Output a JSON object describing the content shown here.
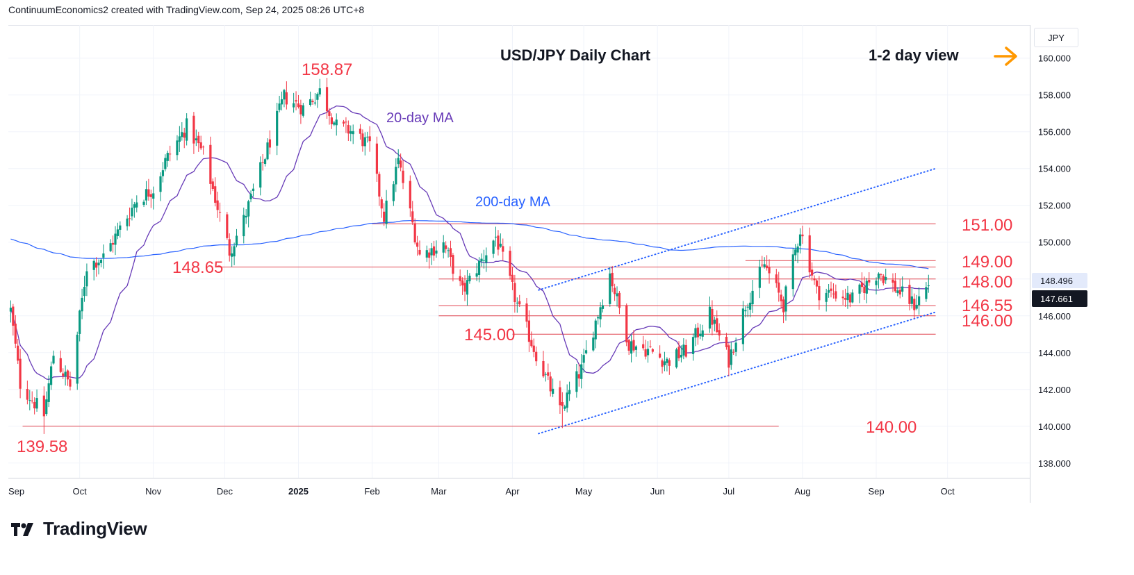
{
  "header": {
    "credit": "ContinuumEconomics2 created with TradingView.com, Sep 24, 2025 08:26 UTC+8"
  },
  "branding": {
    "logo_text": "TradingView"
  },
  "colors": {
    "bull": "#089981",
    "bear": "#f23645",
    "ma20": "#673ab7",
    "ma200": "#2962ff",
    "level_text": "#f23645",
    "arrow": "#ff9800",
    "grid": "#f0f3fa"
  },
  "chart_data": {
    "type": "candlestick",
    "title": "USD/JPY Daily Chart",
    "view_note": "1-2 day view",
    "view_arrow_icon": "arrow-right-icon",
    "currency": "JPY",
    "ylim": [
      137.2,
      161.8
    ],
    "yticks": [
      "138.000",
      "140.000",
      "142.000",
      "144.000",
      "146.000",
      "148.000",
      "150.000",
      "152.000",
      "154.000",
      "156.000",
      "158.000",
      "160.000"
    ],
    "xticks": [
      {
        "label": "Sep",
        "date": "2024-09-01"
      },
      {
        "label": "Oct",
        "date": "2024-10-01"
      },
      {
        "label": "Nov",
        "date": "2024-11-01"
      },
      {
        "label": "Dec",
        "date": "2024-12-01"
      },
      {
        "label": "2025",
        "date": "2025-01-01",
        "bold": true
      },
      {
        "label": "Feb",
        "date": "2025-02-01"
      },
      {
        "label": "Mar",
        "date": "2025-03-01"
      },
      {
        "label": "Apr",
        "date": "2025-04-01"
      },
      {
        "label": "May",
        "date": "2025-05-01"
      },
      {
        "label": "Jun",
        "date": "2025-06-01"
      },
      {
        "label": "Jul",
        "date": "2025-07-01"
      },
      {
        "label": "Aug",
        "date": "2025-08-01"
      },
      {
        "label": "Sep",
        "date": "2025-09-01"
      },
      {
        "label": "Oct",
        "date": "2025-10-01"
      }
    ],
    "last_price": "147.661",
    "ma200_price": "148.496",
    "annotations": {
      "ma20": "20-day MA",
      "ma200": "200-day MA"
    },
    "levels": [
      {
        "value": 151.0,
        "label": "151.00",
        "from": "2025-02-01",
        "to": "2025-09-26"
      },
      {
        "value": 149.0,
        "label": "149.00",
        "from": "2025-07-08",
        "to": "2025-09-26"
      },
      {
        "value": 148.65,
        "label": "148.65",
        "from": "2024-11-27",
        "to": "2025-09-26"
      },
      {
        "value": 148.0,
        "label": "148.00",
        "from": "2025-03-01",
        "to": "2025-09-26"
      },
      {
        "value": 146.55,
        "label": "146.55",
        "from": "2025-03-01",
        "to": "2025-09-26"
      },
      {
        "value": 146.0,
        "label": "146.00",
        "from": "2025-03-01",
        "to": "2025-09-26"
      },
      {
        "value": 145.0,
        "label": "145.00",
        "from": "2025-04-01",
        "to": "2025-09-26"
      },
      {
        "value": 140.0,
        "label": "140.00",
        "from": "2024-09-07",
        "to": "2025-07-22"
      }
    ],
    "peak_labels": [
      {
        "label": "158.87",
        "date": "2025-01-10",
        "value": 158.87
      },
      {
        "label": "139.58",
        "date": "2024-09-16",
        "value": 139.58
      }
    ],
    "channel": {
      "lower": [
        {
          "date": "2025-04-12",
          "value": 139.6
        },
        {
          "date": "2025-09-26",
          "value": 146.2
        }
      ],
      "upper": [
        {
          "date": "2025-04-12",
          "value": 147.4
        },
        {
          "date": "2025-09-26",
          "value": 154.0
        }
      ]
    },
    "anchors": [
      {
        "date": "2024-09-02",
        "price": 146.3
      },
      {
        "date": "2024-09-06",
        "price": 142.3
      },
      {
        "date": "2024-09-16",
        "price": 140.6
      },
      {
        "date": "2024-09-20",
        "price": 143.9
      },
      {
        "date": "2024-09-27",
        "price": 142.2
      },
      {
        "date": "2024-10-04",
        "price": 148.7
      },
      {
        "date": "2024-10-11",
        "price": 149.2
      },
      {
        "date": "2024-10-25",
        "price": 152.3
      },
      {
        "date": "2024-11-01",
        "price": 152.9
      },
      {
        "date": "2024-11-06",
        "price": 154.4
      },
      {
        "date": "2024-11-15",
        "price": 156.3
      },
      {
        "date": "2024-11-22",
        "price": 154.8
      },
      {
        "date": "2024-12-03",
        "price": 149.5
      },
      {
        "date": "2024-12-09",
        "price": 151.2
      },
      {
        "date": "2024-12-18",
        "price": 154.7
      },
      {
        "date": "2024-12-26",
        "price": 157.9
      },
      {
        "date": "2025-01-03",
        "price": 157.3
      },
      {
        "date": "2025-01-10",
        "price": 158.2
      },
      {
        "date": "2025-01-17",
        "price": 156.3
      },
      {
        "date": "2025-01-24",
        "price": 156.0
      },
      {
        "date": "2025-01-31",
        "price": 155.2
      },
      {
        "date": "2025-02-06",
        "price": 151.4
      },
      {
        "date": "2025-02-12",
        "price": 154.4
      },
      {
        "date": "2025-02-21",
        "price": 149.3
      },
      {
        "date": "2025-03-03",
        "price": 149.9
      },
      {
        "date": "2025-03-11",
        "price": 147.3
      },
      {
        "date": "2025-03-25",
        "price": 150.3
      },
      {
        "date": "2025-04-03",
        "price": 146.6
      },
      {
        "date": "2025-04-11",
        "price": 143.9
      },
      {
        "date": "2025-04-21",
        "price": 140.8
      },
      {
        "date": "2025-04-30",
        "price": 143.1
      },
      {
        "date": "2025-05-12",
        "price": 148.3
      },
      {
        "date": "2025-05-20",
        "price": 144.5
      },
      {
        "date": "2025-05-29",
        "price": 144.1
      },
      {
        "date": "2025-06-05",
        "price": 143.5
      },
      {
        "date": "2025-06-13",
        "price": 144.1
      },
      {
        "date": "2025-06-23",
        "price": 146.1
      },
      {
        "date": "2025-07-01",
        "price": 143.6
      },
      {
        "date": "2025-07-08",
        "price": 146.6
      },
      {
        "date": "2025-07-16",
        "price": 148.8
      },
      {
        "date": "2025-07-24",
        "price": 146.6
      },
      {
        "date": "2025-07-31",
        "price": 150.7
      },
      {
        "date": "2025-08-07",
        "price": 147.3
      },
      {
        "date": "2025-08-15",
        "price": 147.2
      },
      {
        "date": "2025-08-22",
        "price": 146.9
      },
      {
        "date": "2025-09-02",
        "price": 148.4
      },
      {
        "date": "2025-09-10",
        "price": 147.4
      },
      {
        "date": "2025-09-17",
        "price": 146.6
      },
      {
        "date": "2025-09-23",
        "price": 147.7
      }
    ]
  }
}
